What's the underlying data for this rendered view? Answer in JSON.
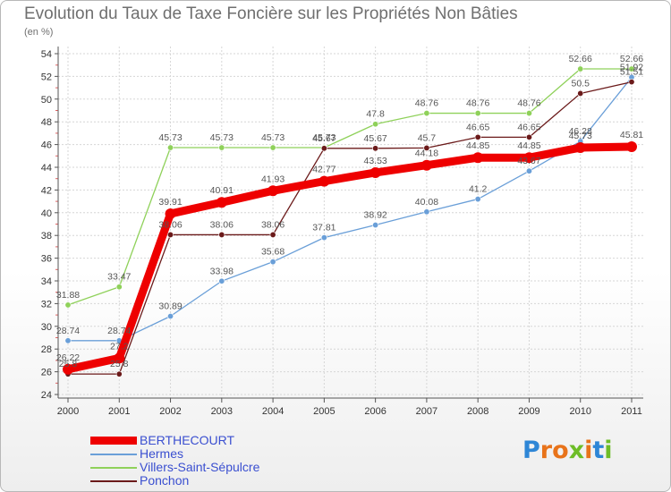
{
  "title": "Evolution du Taux de Taxe Foncière sur les Propriétés Non Bâties",
  "unit": "(en %)",
  "logo": {
    "letters": [
      "P",
      "r",
      "o",
      "x",
      "i",
      "t",
      "i"
    ],
    "colors": [
      "#2e86d6",
      "#e8731a",
      "#e8731a",
      "#6dbd27",
      "#e8731a",
      "#2e86d6",
      "#6dbd27"
    ]
  },
  "chart_data": {
    "type": "line",
    "title": "Evolution du Taux de Taxe Foncière sur les Propriétés Non Bâties",
    "ylabel": "(en %)",
    "xlabel": "",
    "categories": [
      "2000",
      "2001",
      "2002",
      "2003",
      "2004",
      "2005",
      "2006",
      "2007",
      "2008",
      "2009",
      "2010",
      "2011"
    ],
    "ylim": [
      24,
      54
    ],
    "yticks": [
      24,
      26,
      28,
      30,
      32,
      34,
      36,
      38,
      40,
      42,
      44,
      46,
      48,
      50,
      52,
      54
    ],
    "grid": true,
    "series": [
      {
        "name": "BERTHECOURT",
        "color": "#ee0000",
        "emphasis": true,
        "values": [
          26.22,
          27.2,
          39.91,
          40.91,
          41.93,
          42.77,
          43.53,
          44.18,
          44.85,
          44.85,
          45.73,
          45.81
        ],
        "labels": [
          "26.22",
          "27.2",
          "39.91",
          "40.91",
          "41.93",
          "42.77",
          "43.53",
          "44.18",
          "44.85",
          "44.85",
          "45.73",
          "45.81"
        ]
      },
      {
        "name": "Hermes",
        "color": "#6a9fd8",
        "values": [
          28.74,
          28.74,
          30.89,
          33.98,
          35.68,
          37.81,
          38.92,
          40.08,
          41.2,
          43.67,
          46.28,
          51.92
        ],
        "labels": [
          "28.74",
          "28.74",
          "30.89",
          "33.98",
          "35.68",
          "37.81",
          "38.92",
          "40.08",
          "41.2",
          "43.67",
          "46.28",
          "51.92"
        ]
      },
      {
        "name": "Villers-Saint-Sépulcre",
        "color": "#8fd15a",
        "values": [
          31.88,
          33.47,
          45.73,
          45.73,
          45.73,
          45.73,
          47.8,
          48.76,
          48.76,
          48.76,
          52.66,
          52.66
        ],
        "labels": [
          "31.88",
          "33.47",
          "45.73",
          "45.73",
          "45.73",
          "45.73",
          "47.8",
          "48.76",
          "48.76",
          "48.76",
          "52.66",
          "52.66"
        ]
      },
      {
        "name": "Ponchon",
        "color": "#6b1a1a",
        "values": [
          25.8,
          25.8,
          38.06,
          38.06,
          38.06,
          45.67,
          45.67,
          45.7,
          46.65,
          46.65,
          50.5,
          51.51
        ],
        "labels": [
          "25.8",
          "25.8",
          "38.06",
          "38.06",
          "38.06",
          "45.67",
          "45.67",
          "45.7",
          "46.65",
          "46.65",
          "50.5",
          "51.51"
        ]
      }
    ]
  }
}
